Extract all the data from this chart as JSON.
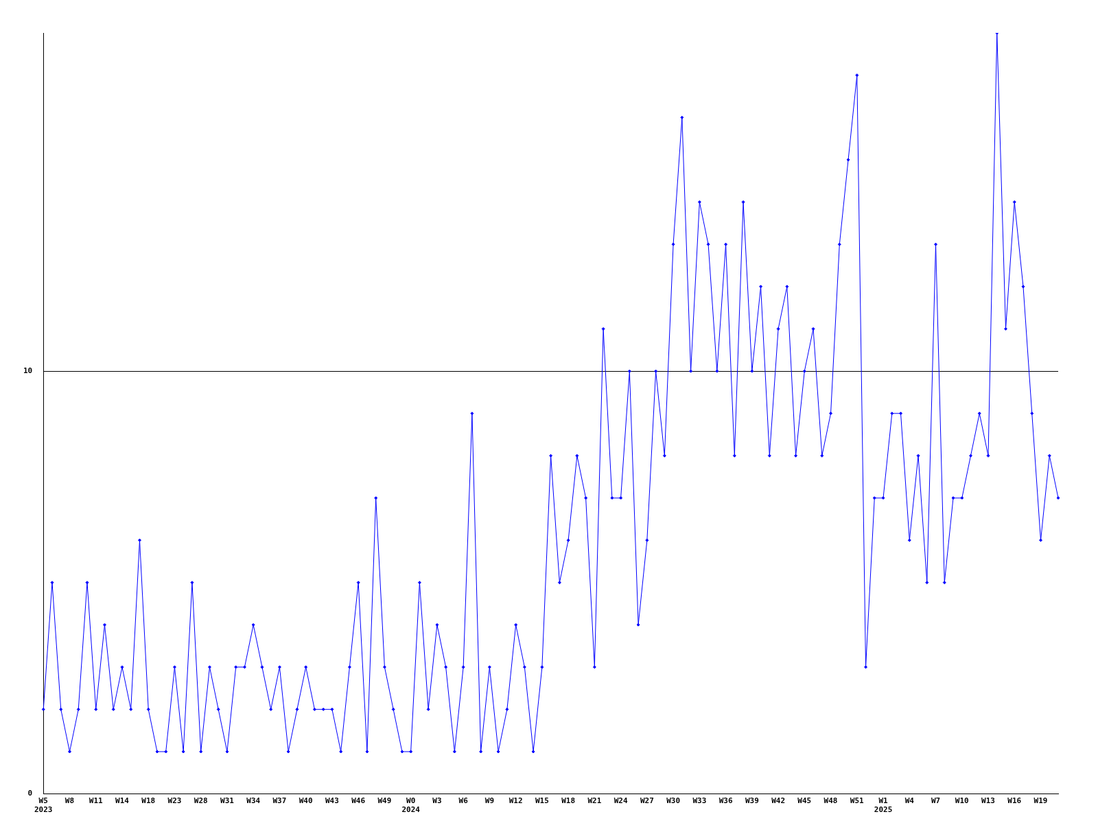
{
  "chart_data": {
    "type": "line",
    "categories": [
      "W5\n2023",
      null,
      null,
      "W8",
      null,
      null,
      "W11",
      null,
      null,
      "W14",
      null,
      null,
      "W18",
      null,
      null,
      "W23",
      null,
      null,
      "W28",
      null,
      null,
      "W31",
      null,
      null,
      "W34",
      null,
      null,
      "W37",
      null,
      null,
      "W40",
      null,
      null,
      "W43",
      null,
      null,
      "W46",
      null,
      null,
      "W49",
      null,
      null,
      "W0\n2024",
      null,
      null,
      "W3",
      null,
      null,
      "W6",
      null,
      null,
      "W9",
      null,
      null,
      "W12",
      null,
      null,
      "W15",
      null,
      null,
      "W18",
      null,
      null,
      "W21",
      null,
      null,
      "W24",
      null,
      null,
      "W27",
      null,
      null,
      "W30",
      null,
      null,
      "W33",
      null,
      null,
      "W36",
      null,
      null,
      "W39",
      null,
      null,
      "W42",
      null,
      null,
      "W45",
      null,
      null,
      "W48",
      null,
      null,
      "W51",
      null,
      null,
      "W1\n2025",
      null,
      null,
      "W4",
      null,
      null,
      "W7",
      null,
      null,
      "W10",
      null,
      null,
      "W13",
      null,
      null,
      "W16",
      null,
      null,
      "W19",
      null,
      null
    ],
    "series": [
      {
        "color": "#0000ff",
        "values": [
          2,
          5,
          2,
          1,
          2,
          5,
          2,
          4,
          2,
          3,
          2,
          6,
          2,
          1,
          1,
          3,
          1,
          5,
          1,
          3,
          2,
          1,
          3,
          3,
          4,
          3,
          2,
          3,
          1,
          2,
          3,
          2,
          2,
          2,
          1,
          3,
          5,
          1,
          7,
          3,
          2,
          1,
          1,
          5,
          2,
          4,
          3,
          1,
          3,
          9,
          1,
          3,
          1,
          2,
          4,
          3,
          1,
          3,
          8,
          5,
          6,
          8,
          7,
          3,
          11,
          7,
          7,
          10,
          4,
          6,
          10,
          8,
          13,
          16,
          10,
          14,
          13,
          10,
          13,
          8,
          14,
          10,
          12,
          8,
          11,
          12,
          8,
          10,
          11,
          8,
          9,
          13,
          15,
          17,
          3,
          7,
          7,
          9,
          9,
          6,
          8,
          5,
          13,
          5,
          7,
          7,
          8,
          9,
          8,
          18,
          11,
          14,
          12,
          9,
          6,
          8,
          7
        ]
      }
    ],
    "ylim": [
      0,
      18
    ],
    "yticks": [
      0,
      10
    ],
    "grid": "y",
    "marker": "diamond",
    "line_style": "solid"
  }
}
